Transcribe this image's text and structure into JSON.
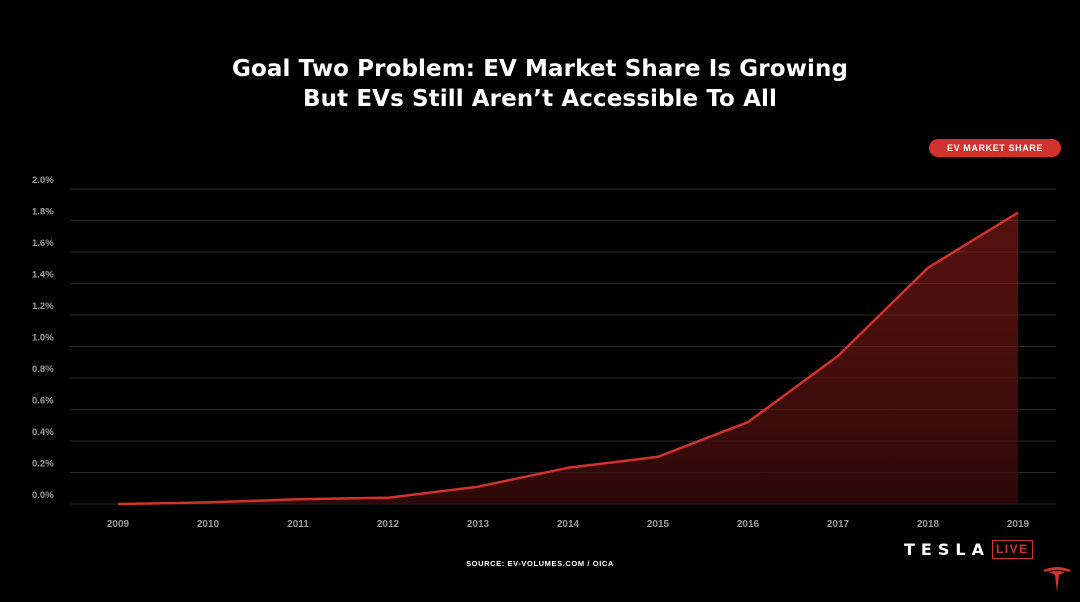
{
  "page": {
    "title_line1": "Goal Two Problem: EV Market Share Is Growing",
    "title_line2": "But EVs Still Aren’t Accessible To All",
    "source": "SOURCE: EV-VOLUMES.COM / OICA",
    "brand_word": "TESLA",
    "brand_live": "LIVE",
    "logo_icon": "tesla-t-icon"
  },
  "colors": {
    "accent": "#d0322d",
    "background": "#000000",
    "grid": "#2a2a2a",
    "tick_text": "#9a9a9a"
  },
  "chart_data": {
    "type": "area",
    "title": "Goal Two Problem: EV Market Share Is Growing But EVs Still Aren’t Accessible To All",
    "xlabel": "",
    "ylabel": "",
    "categories": [
      "2009",
      "2010",
      "2011",
      "2012",
      "2013",
      "2014",
      "2015",
      "2016",
      "2017",
      "2018",
      "2019"
    ],
    "series": [
      {
        "name": "EV MARKET SHARE",
        "values": [
          0.0,
          0.01,
          0.03,
          0.04,
          0.11,
          0.23,
          0.3,
          0.52,
          0.94,
          1.5,
          1.85
        ]
      }
    ],
    "ylim": [
      0,
      2.0
    ],
    "yticks": [
      "0.0%",
      "0.2%",
      "0.4%",
      "0.6%",
      "0.8%",
      "1.0%",
      "1.2%",
      "1.4%",
      "1.6%",
      "1.8%",
      "2.0%"
    ],
    "grid": true,
    "legend_position": "top-right"
  }
}
